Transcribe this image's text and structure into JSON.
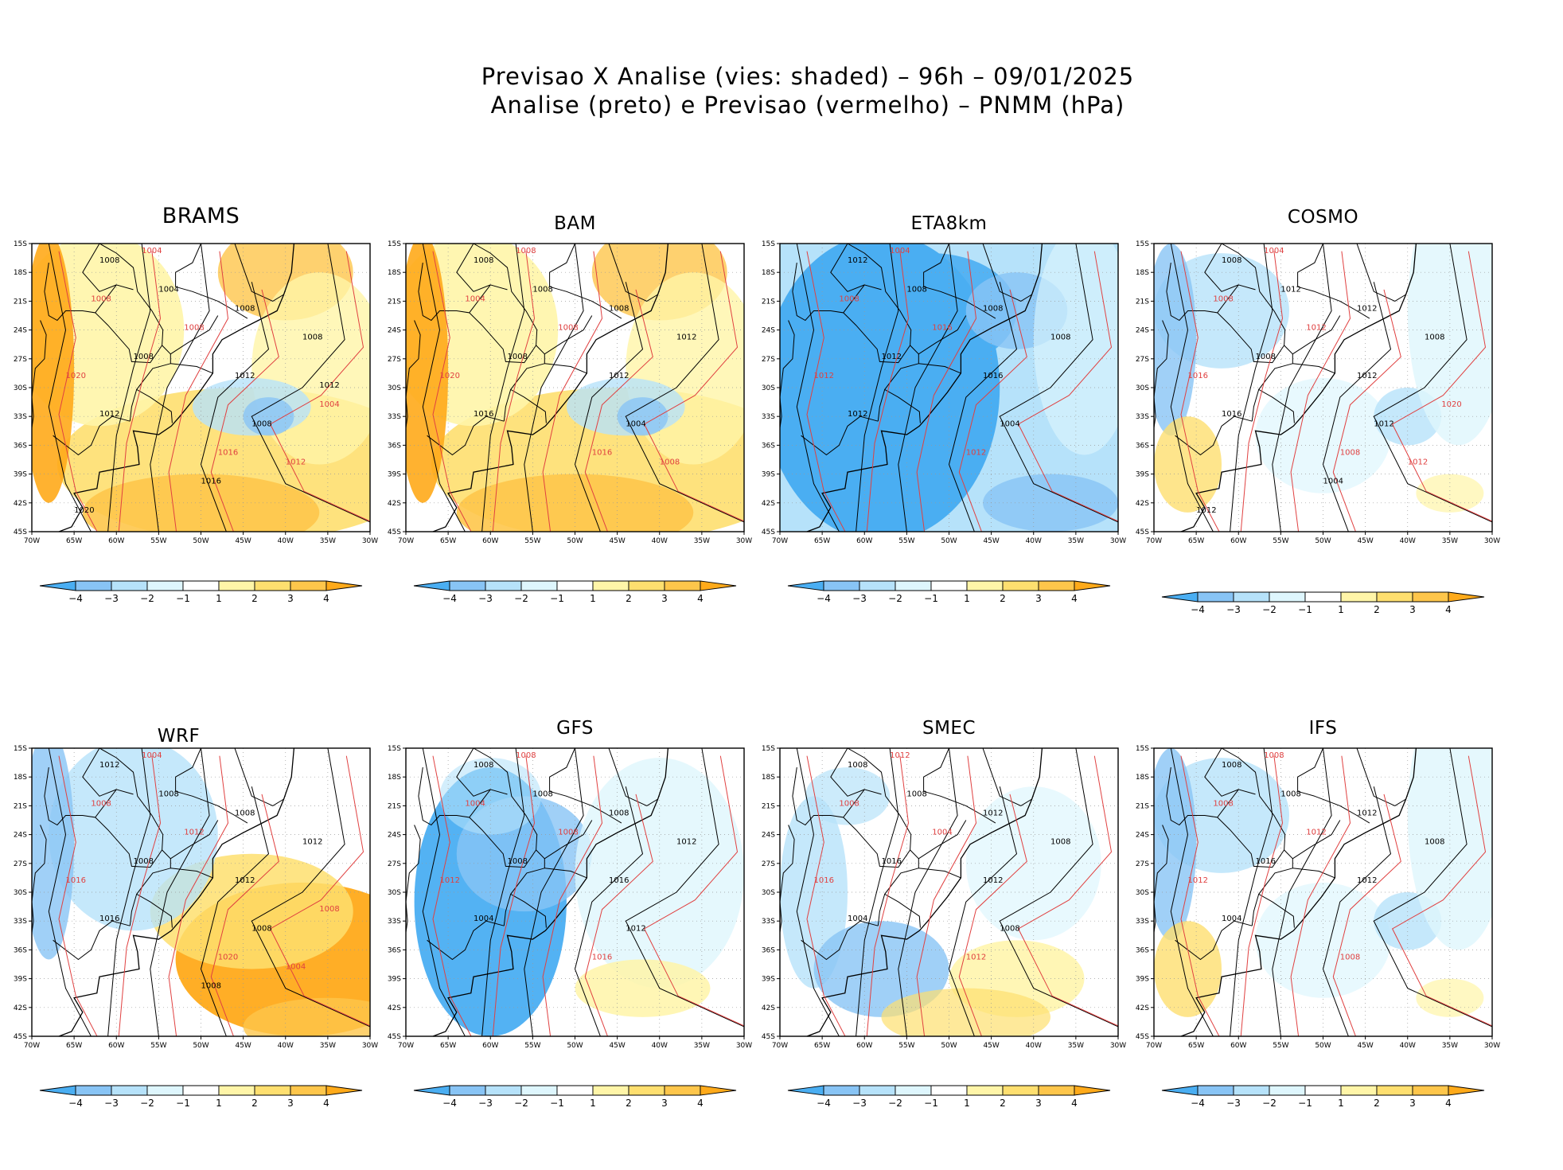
{
  "title": {
    "line1": "Previsao X Analise (vies: shaded) – 96h – 09/01/2025",
    "line2": "Analise (preto) e Previsao (vermelho) – PNMM (hPa)"
  },
  "map": {
    "lat_labels": [
      "15S",
      "18S",
      "21S",
      "24S",
      "27S",
      "30S",
      "33S",
      "36S",
      "39S",
      "42S",
      "45S"
    ],
    "lon_labels": [
      "70W",
      "65W",
      "60W",
      "55W",
      "50W",
      "45W",
      "40W",
      "35W",
      "30W"
    ],
    "colorbar_labels": [
      "-4",
      "-3",
      "-2",
      "-1",
      "1",
      "2",
      "3",
      "4"
    ],
    "colorbar_colors": [
      "#4aaef2",
      "#88c4f5",
      "#b6e2fa",
      "#def6fd",
      "#ffffff",
      "#fff5a8",
      "#fedf6f",
      "#fec64b",
      "#ffaa1a"
    ]
  },
  "colors": {
    "analysis_contour": "#000000",
    "forecast_contour": "#e04040",
    "negative_bias": "#4aaef2",
    "positive_bias": "#ffaa1a"
  },
  "panels": [
    {
      "name": "BRAMS",
      "bias": "warm",
      "labels_black": [
        "1008",
        "1004",
        "1008",
        "1008",
        "1008",
        "1012",
        "1012",
        "1008",
        "1016",
        "1020",
        "1012"
      ],
      "labels_red": [
        "1004",
        "1008",
        "1008",
        "1020",
        "1016",
        "1012",
        "1004"
      ]
    },
    {
      "name": "BAM",
      "bias": "warm",
      "labels_black": [
        "1008",
        "1008",
        "1008",
        "1012",
        "1008",
        "1012",
        "1016",
        "1004"
      ],
      "labels_red": [
        "1008",
        "1004",
        "1008",
        "1020",
        "1016",
        "1008"
      ]
    },
    {
      "name": "ETA8km",
      "bias": "cold",
      "labels_black": [
        "1012",
        "1008",
        "1008",
        "1008",
        "1012",
        "1016",
        "1012",
        "1004"
      ],
      "labels_red": [
        "1004",
        "1008",
        "1016",
        "1012",
        "1012"
      ]
    },
    {
      "name": "COSMO",
      "bias": "neutral",
      "labels_black": [
        "1008",
        "1012",
        "1012",
        "1008",
        "1008",
        "1012",
        "1016",
        "1012",
        "1004",
        "1012"
      ],
      "labels_red": [
        "1004",
        "1008",
        "1012",
        "1016",
        "1008",
        "1012",
        "1020"
      ]
    },
    {
      "name": "WRF",
      "bias": "warm-east",
      "labels_black": [
        "1012",
        "1008",
        "1008",
        "1012",
        "1008",
        "1012",
        "1016",
        "1008",
        "1008"
      ],
      "labels_red": [
        "1004",
        "1008",
        "1012",
        "1016",
        "1020",
        "1004",
        "1008"
      ]
    },
    {
      "name": "GFS",
      "bias": "cold-west",
      "labels_black": [
        "1008",
        "1008",
        "1008",
        "1012",
        "1008",
        "1016",
        "1004",
        "1012"
      ],
      "labels_red": [
        "1008",
        "1004",
        "1008",
        "1012",
        "1016"
      ]
    },
    {
      "name": "SMEC",
      "bias": "neutral-south",
      "labels_black": [
        "1008",
        "1008",
        "1012",
        "1008",
        "1016",
        "1012",
        "1004",
        "1008"
      ],
      "labels_red": [
        "1012",
        "1008",
        "1004",
        "1016",
        "1012"
      ]
    },
    {
      "name": "IFS",
      "bias": "neutral",
      "labels_black": [
        "1008",
        "1008",
        "1012",
        "1008",
        "1016",
        "1012",
        "1004"
      ],
      "labels_red": [
        "1008",
        "1008",
        "1012",
        "1012",
        "1008"
      ]
    }
  ]
}
